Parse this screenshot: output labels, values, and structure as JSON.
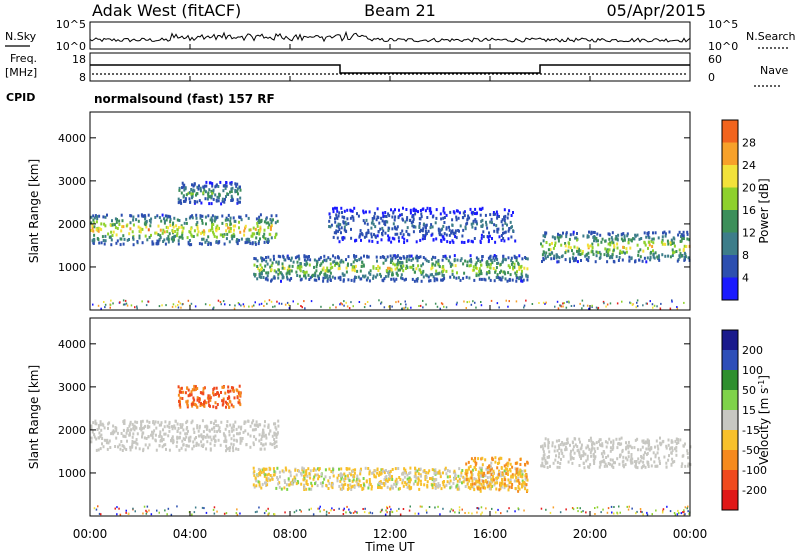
{
  "header": {
    "station": "Adak West (fitACF)",
    "beam": "Beam 21",
    "date": "05/Apr/2015"
  },
  "noise_panel": {
    "left_label": "N.Sky",
    "right_label": "N.Search",
    "ticks": [
      "10^5",
      "10^0"
    ]
  },
  "freq_panel": {
    "left_label_1": "Freq.",
    "left_label_2": "[MHz]",
    "left_ticks": [
      "18",
      "8"
    ],
    "right_ticks": [
      "60",
      "0"
    ],
    "right_label": "Nave",
    "cpid_label": "CPID",
    "cpid_text": "normalsound (fast) 157 RF"
  },
  "time_axis": {
    "label": "Time UT",
    "ticks": [
      "00:00",
      "04:00",
      "08:00",
      "12:00",
      "16:00",
      "20:00",
      "00:00"
    ]
  },
  "colors": {
    "power": [
      "#1a1aff",
      "#2c4fb0",
      "#3d7d8a",
      "#3c8f5a",
      "#8ed12c",
      "#f2e23a",
      "#f7a12a",
      "#f2641e",
      "#e51e1e"
    ],
    "velocity": [
      "#1a1a8c",
      "#2e4fb8",
      "#2f8f2f",
      "#7fd34a",
      "#c7c7c2",
      "#f7c02b",
      "#f58a1e",
      "#f04a1e",
      "#e01818"
    ],
    "ground": "#c7c7c2"
  },
  "chart_data": [
    {
      "type": "heatmap",
      "name": "power",
      "x_label": "Time UT",
      "y_label": "Slant Range [km]",
      "ylim": [
        0,
        4600
      ],
      "xlim": [
        0,
        24
      ],
      "y_ticks": [
        1000,
        2000,
        3000,
        4000
      ],
      "colorbar": {
        "label": "Power [dB]",
        "range": [
          0,
          32
        ],
        "ticks": [
          4,
          8,
          12,
          16,
          20,
          24,
          28
        ]
      },
      "regions": [
        {
          "t_start": 0,
          "t_end": 7.5,
          "range_center": 1900,
          "range_halfwidth": 350,
          "peak_db": 26
        },
        {
          "t_start": 3.5,
          "t_end": 6.0,
          "range_center": 2750,
          "range_halfwidth": 250,
          "peak_db": 16
        },
        {
          "t_start": 6.5,
          "t_end": 17.5,
          "range_center": 1000,
          "range_halfwidth": 300,
          "peak_db": 22
        },
        {
          "t_start": 9.5,
          "t_end": 17.0,
          "range_center": 2000,
          "range_halfwidth": 400,
          "peak_db": 10
        },
        {
          "t_start": 18.0,
          "t_end": 24,
          "range_center": 1500,
          "range_halfwidth": 350,
          "peak_db": 24
        }
      ]
    },
    {
      "type": "heatmap",
      "name": "velocity",
      "x_label": "Time UT",
      "y_label": "Slant Range [km]",
      "ylim": [
        0,
        4600
      ],
      "xlim": [
        0,
        24
      ],
      "y_ticks": [
        1000,
        2000,
        3000,
        4000
      ],
      "colorbar": {
        "label": "Velocity [m s^-1]",
        "ticks": [
          200,
          100,
          50,
          15,
          -15,
          -50,
          -100,
          -200
        ]
      },
      "regions": [
        {
          "t_start": 0,
          "t_end": 7.5,
          "range_center": 1900,
          "range_halfwidth": 350,
          "velocity": 0,
          "ground_scatter": true
        },
        {
          "t_start": 3.5,
          "t_end": 6.0,
          "range_center": 2800,
          "range_halfwidth": 250,
          "velocity": -150
        },
        {
          "t_start": 6.5,
          "t_end": 17.5,
          "range_center": 900,
          "range_halfwidth": 250,
          "velocity": -30
        },
        {
          "t_start": 15.0,
          "t_end": 17.5,
          "range_center": 1000,
          "range_halfwidth": 400,
          "velocity": -70
        },
        {
          "t_start": 18.0,
          "t_end": 24,
          "range_center": 1500,
          "range_halfwidth": 350,
          "velocity": 0,
          "ground_scatter": true
        }
      ]
    }
  ]
}
